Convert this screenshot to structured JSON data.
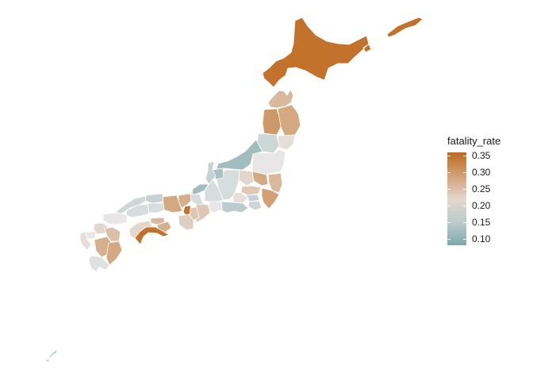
{
  "legend": {
    "title": "fatality_rate",
    "min": 0.08,
    "max": 0.36,
    "ticks": [
      {
        "value": 0.35,
        "label": "0.35"
      },
      {
        "value": 0.3,
        "label": "0.30"
      },
      {
        "value": 0.25,
        "label": "0.25"
      },
      {
        "value": 0.2,
        "label": "0.20"
      },
      {
        "value": 0.15,
        "label": "0.15"
      },
      {
        "value": 0.1,
        "label": "0.10"
      }
    ],
    "colors": {
      "high": "#BF6A1D",
      "mid": "#E8E6E6",
      "low": "#7FA8A9"
    }
  },
  "regions": [
    {
      "name": "Hokkaido",
      "value": 0.35
    },
    {
      "name": "Aomori",
      "value": 0.26
    },
    {
      "name": "Iwate",
      "value": 0.28
    },
    {
      "name": "Akita",
      "value": 0.3
    },
    {
      "name": "Miyagi",
      "value": 0.21
    },
    {
      "name": "Yamagata",
      "value": 0.17
    },
    {
      "name": "Fukushima",
      "value": 0.2
    },
    {
      "name": "Niigata",
      "value": 0.12
    },
    {
      "name": "Ibaraki",
      "value": 0.26
    },
    {
      "name": "Tochigi",
      "value": 0.28
    },
    {
      "name": "Gunma",
      "value": 0.22
    },
    {
      "name": "Saitama",
      "value": 0.24
    },
    {
      "name": "Tokyo",
      "value": 0.16
    },
    {
      "name": "Chiba",
      "value": 0.29
    },
    {
      "name": "Kanagawa",
      "value": 0.17
    },
    {
      "name": "Yamanashi",
      "value": 0.21
    },
    {
      "name": "Nagano",
      "value": 0.18
    },
    {
      "name": "Shizuoka",
      "value": 0.15
    },
    {
      "name": "Toyama",
      "value": 0.13
    },
    {
      "name": "Ishikawa",
      "value": 0.16
    },
    {
      "name": "Fukui",
      "value": 0.12
    },
    {
      "name": "Gifu",
      "value": 0.18
    },
    {
      "name": "Aichi",
      "value": 0.2
    },
    {
      "name": "Mie",
      "value": 0.24
    },
    {
      "name": "Shiga",
      "value": 0.18
    },
    {
      "name": "Kyoto",
      "value": 0.27
    },
    {
      "name": "Osaka",
      "value": 0.35
    },
    {
      "name": "Hyogo",
      "value": 0.28
    },
    {
      "name": "Nara",
      "value": 0.24
    },
    {
      "name": "Wakayama",
      "value": 0.23
    },
    {
      "name": "Tottori",
      "value": 0.16
    },
    {
      "name": "Shimane",
      "value": 0.17
    },
    {
      "name": "Okayama",
      "value": 0.18
    },
    {
      "name": "Hiroshima",
      "value": 0.18
    },
    {
      "name": "Yamaguchi",
      "value": 0.2
    },
    {
      "name": "Tokushima",
      "value": 0.27
    },
    {
      "name": "Kagawa",
      "value": 0.26
    },
    {
      "name": "Ehime",
      "value": 0.22
    },
    {
      "name": "Kochi",
      "value": 0.35
    },
    {
      "name": "Fukuoka",
      "value": 0.22
    },
    {
      "name": "Saga",
      "value": 0.2
    },
    {
      "name": "Nagasaki",
      "value": 0.21
    },
    {
      "name": "Kumamoto",
      "value": 0.27
    },
    {
      "name": "Oita",
      "value": 0.25
    },
    {
      "name": "Miyazaki",
      "value": 0.28
    },
    {
      "name": "Kagoshima",
      "value": 0.19
    },
    {
      "name": "Okinawa",
      "value": 0.14
    }
  ]
}
